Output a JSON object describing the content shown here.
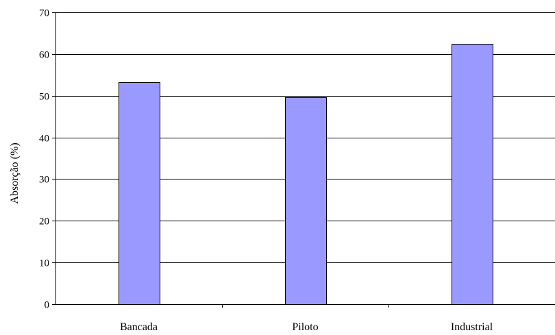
{
  "chart_data": {
    "type": "bar",
    "categories": [
      "Bancada",
      "Piloto",
      "Industrial"
    ],
    "values": [
      53.2,
      49.6,
      62.5
    ],
    "ylabel": "Absorção (%)",
    "xlabel": "",
    "ylim": [
      0,
      70
    ],
    "yticks": [
      0,
      10,
      20,
      30,
      40,
      50,
      60,
      70
    ],
    "grid": true,
    "legend": "none",
    "bar_color": "#9999ff",
    "bar_edge_color": "#000000"
  }
}
